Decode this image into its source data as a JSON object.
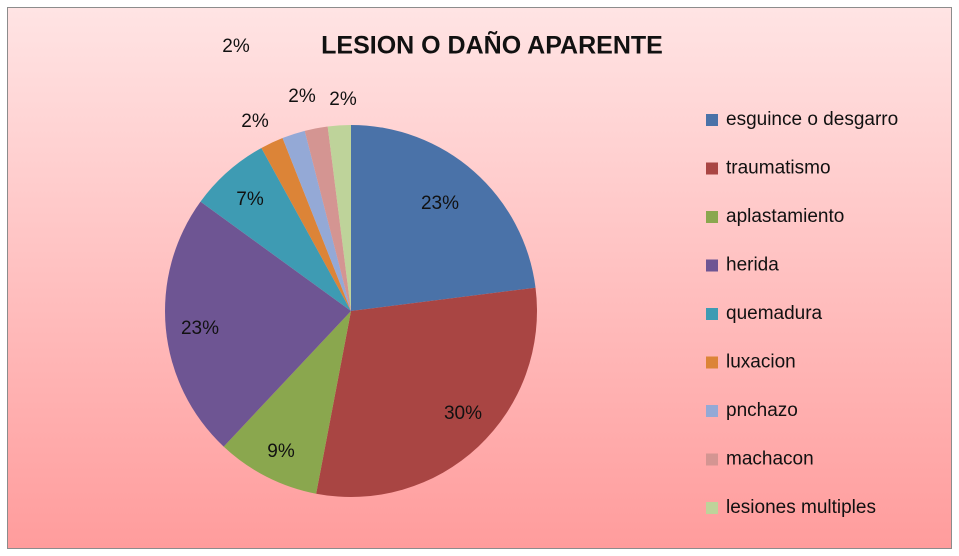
{
  "chart_data": {
    "type": "pie",
    "title": "LESION O DAÑO APARENTE",
    "categories": [
      "esguince o desgarro",
      "traumatismo",
      "aplastamiento",
      "herida",
      "quemadura",
      "luxacion",
      "pnchazo",
      "machacon",
      "lesiones multiples"
    ],
    "values": [
      23,
      30,
      9,
      23,
      7,
      2,
      2,
      2,
      2
    ],
    "value_labels": [
      "23%",
      "30%",
      "9%",
      "23%",
      "7%",
      "2%",
      "2%",
      "2%",
      "2%"
    ],
    "colors": [
      "#4a72a8",
      "#a94543",
      "#8aa74e",
      "#6e5593",
      "#3e9bb3",
      "#dc8437",
      "#94a9d6",
      "#d49592",
      "#bed39a"
    ],
    "legend": "right"
  }
}
